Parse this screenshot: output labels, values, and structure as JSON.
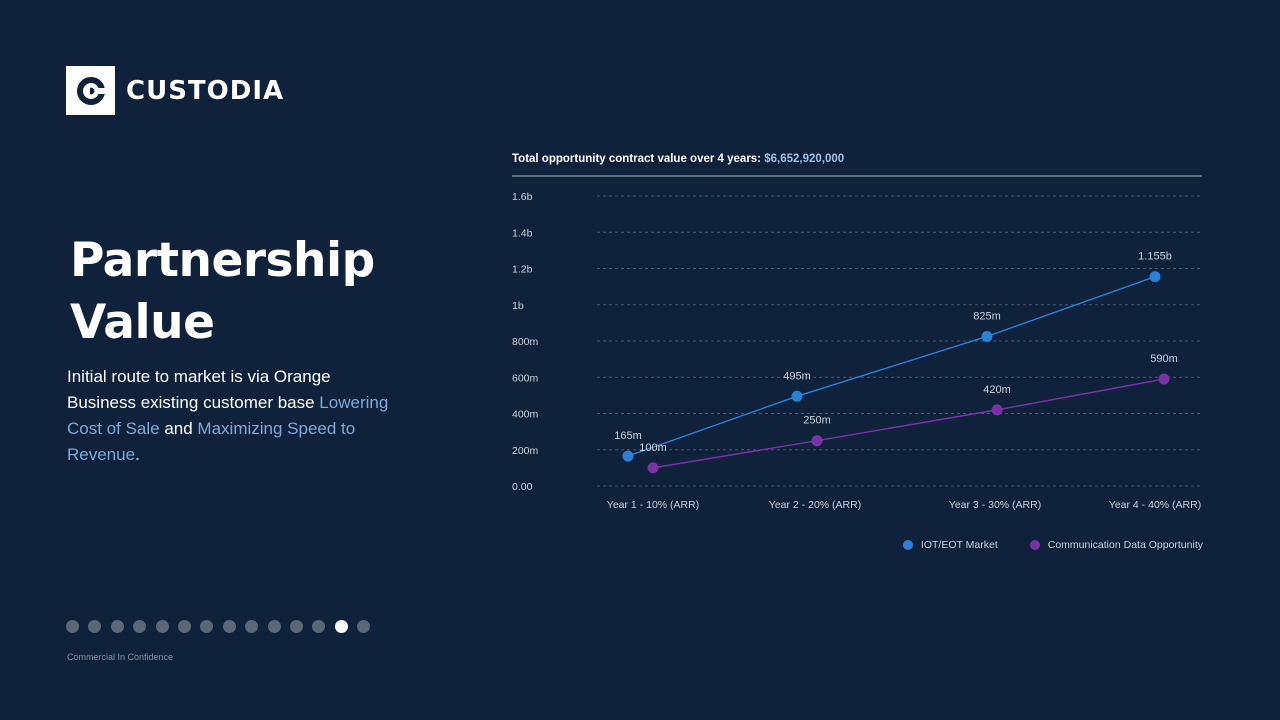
{
  "brand": {
    "name": "CUSTODIA"
  },
  "heading": {
    "line1": "Partnership",
    "line2": "Value"
  },
  "description": {
    "part1": "Initial route to market is via Orange Business existing customer base ",
    "highlight1": "Lowering Cost of Sale",
    "part2": " and ",
    "highlight2": "Maximizing Speed to Revenue",
    "part3": "."
  },
  "pagination": {
    "total": 14,
    "active_index": 12
  },
  "footer": {
    "note": "Commercial In Confidence"
  },
  "colors": {
    "background": "#0f213b",
    "series1": "#2a82d6",
    "series2": "#7b32a8",
    "highlight_text": "#7fa9d6"
  },
  "chart_data": {
    "type": "line",
    "title": "Total opportunity contract value over 4 years:",
    "title_value": "$6,652,920,000",
    "categories": [
      "Year 1 - 10% (ARR)",
      "Year 2 - 20% (ARR)",
      "Year 3 - 30% (ARR)",
      "Year 4 - 40% (ARR)"
    ],
    "y_ticks": [
      {
        "value": 0,
        "label": "0.00"
      },
      {
        "value": 200,
        "label": "200m"
      },
      {
        "value": 400,
        "label": "400m"
      },
      {
        "value": 600,
        "label": "600m"
      },
      {
        "value": 800,
        "label": "800m"
      },
      {
        "value": 1000,
        "label": "1b"
      },
      {
        "value": 1200,
        "label": "1.2b"
      },
      {
        "value": 1400,
        "label": "1.4b"
      },
      {
        "value": 1600,
        "label": "1.6b"
      }
    ],
    "ylim": [
      0,
      1600
    ],
    "grid": true,
    "legend_position": "bottom-right",
    "series": [
      {
        "name": "IOT/EOT Market",
        "values": [
          165,
          495,
          825,
          1155
        ],
        "labels": [
          "165m",
          "495m",
          "825m",
          "1.155b"
        ],
        "color": "#2a82d6"
      },
      {
        "name": "Communication Data Opportunity",
        "values": [
          100,
          250,
          420,
          590
        ],
        "labels": [
          "100m",
          "250m",
          "420m",
          "590m"
        ],
        "color": "#7b32a8"
      }
    ]
  }
}
